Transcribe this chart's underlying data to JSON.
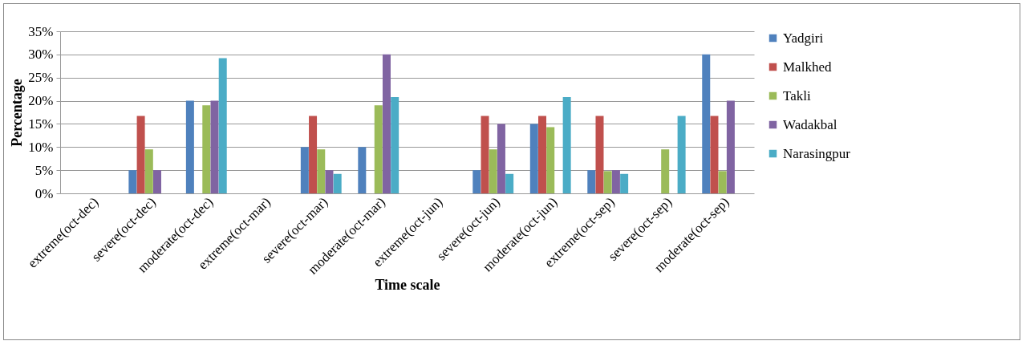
{
  "chart_data": {
    "type": "bar",
    "xlabel": "Time scale",
    "ylabel": "Percentage",
    "categories": [
      "extreme(oct-dec)",
      "severe(oct-dec)",
      "moderate(oct-dec)",
      "extreme(oct-mar)",
      "severe(oct-mar)",
      "moderate(oct-mar)",
      "extreme(oct-jun)",
      "severe(oct-jun)",
      "moderate(oct-jun)",
      "extreme(oct-sep)",
      "severe(oct-sep)",
      "moderate(oct-sep)"
    ],
    "series": [
      {
        "name": "Yadgiri",
        "color": "#4f81bd",
        "values": [
          0,
          5,
          20,
          0,
          10,
          10,
          0,
          5,
          15,
          5,
          0,
          30
        ]
      },
      {
        "name": "Malkhed",
        "color": "#c0504d",
        "values": [
          0,
          16.7,
          0,
          0,
          16.7,
          0,
          0,
          16.7,
          16.7,
          16.7,
          0,
          16.7
        ]
      },
      {
        "name": "Takli",
        "color": "#9bbb59",
        "values": [
          0,
          9.5,
          19,
          0,
          9.5,
          19,
          0,
          9.5,
          14.3,
          4.8,
          9.5,
          4.8
        ]
      },
      {
        "name": "Wadakbal",
        "color": "#8064a2",
        "values": [
          0,
          5,
          20,
          0,
          5,
          30,
          0,
          15,
          0,
          5,
          0,
          20
        ]
      },
      {
        "name": "Narasingpur",
        "color": "#4bacc6",
        "values": [
          0,
          0,
          29.2,
          0,
          4.2,
          20.8,
          0,
          4.2,
          20.8,
          4.2,
          16.7,
          0
        ]
      }
    ],
    "ylim": [
      0,
      35
    ],
    "yticks": [
      {
        "value": 0,
        "label": "0%"
      },
      {
        "value": 5,
        "label": "5%"
      },
      {
        "value": 10,
        "label": "10%"
      },
      {
        "value": 15,
        "label": "15%"
      },
      {
        "value": 20,
        "label": "20%"
      },
      {
        "value": 25,
        "label": "25%"
      },
      {
        "value": 30,
        "label": "30%"
      },
      {
        "value": 35,
        "label": "35%"
      }
    ],
    "grid": "y",
    "legend": "right"
  }
}
